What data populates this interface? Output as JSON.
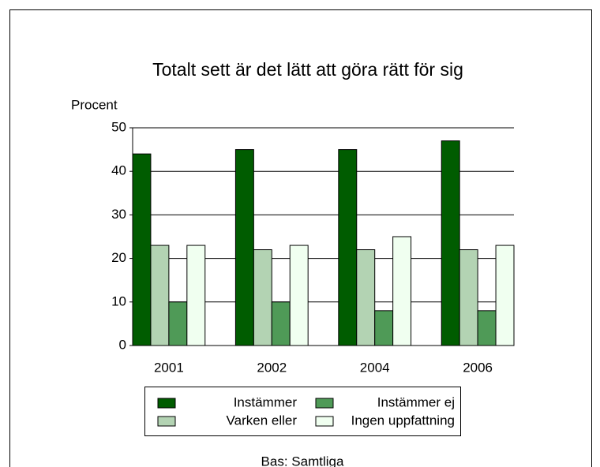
{
  "chart_data": {
    "type": "bar",
    "title": "Totalt sett är det lätt att göra rätt för sig",
    "y_label": "Procent",
    "footnote": "Bas: Samtliga",
    "categories": [
      "2001",
      "2002",
      "2004",
      "2006"
    ],
    "series": [
      {
        "name": "Instämmer",
        "color": "#005c00",
        "values": [
          44,
          45,
          45,
          47
        ]
      },
      {
        "name": "Varken eller",
        "color": "#b3d3b3",
        "values": [
          23,
          22,
          22,
          22
        ]
      },
      {
        "name": "Instämmer ej",
        "color": "#4f9a57",
        "values": [
          10,
          10,
          8,
          8
        ]
      },
      {
        "name": "Ingen uppfattning",
        "color": "#f0fff0",
        "values": [
          23,
          23,
          25,
          23
        ]
      }
    ],
    "ylim": [
      0,
      50
    ],
    "yticks": [
      0,
      10,
      20,
      30,
      40,
      50
    ],
    "grid": true
  }
}
